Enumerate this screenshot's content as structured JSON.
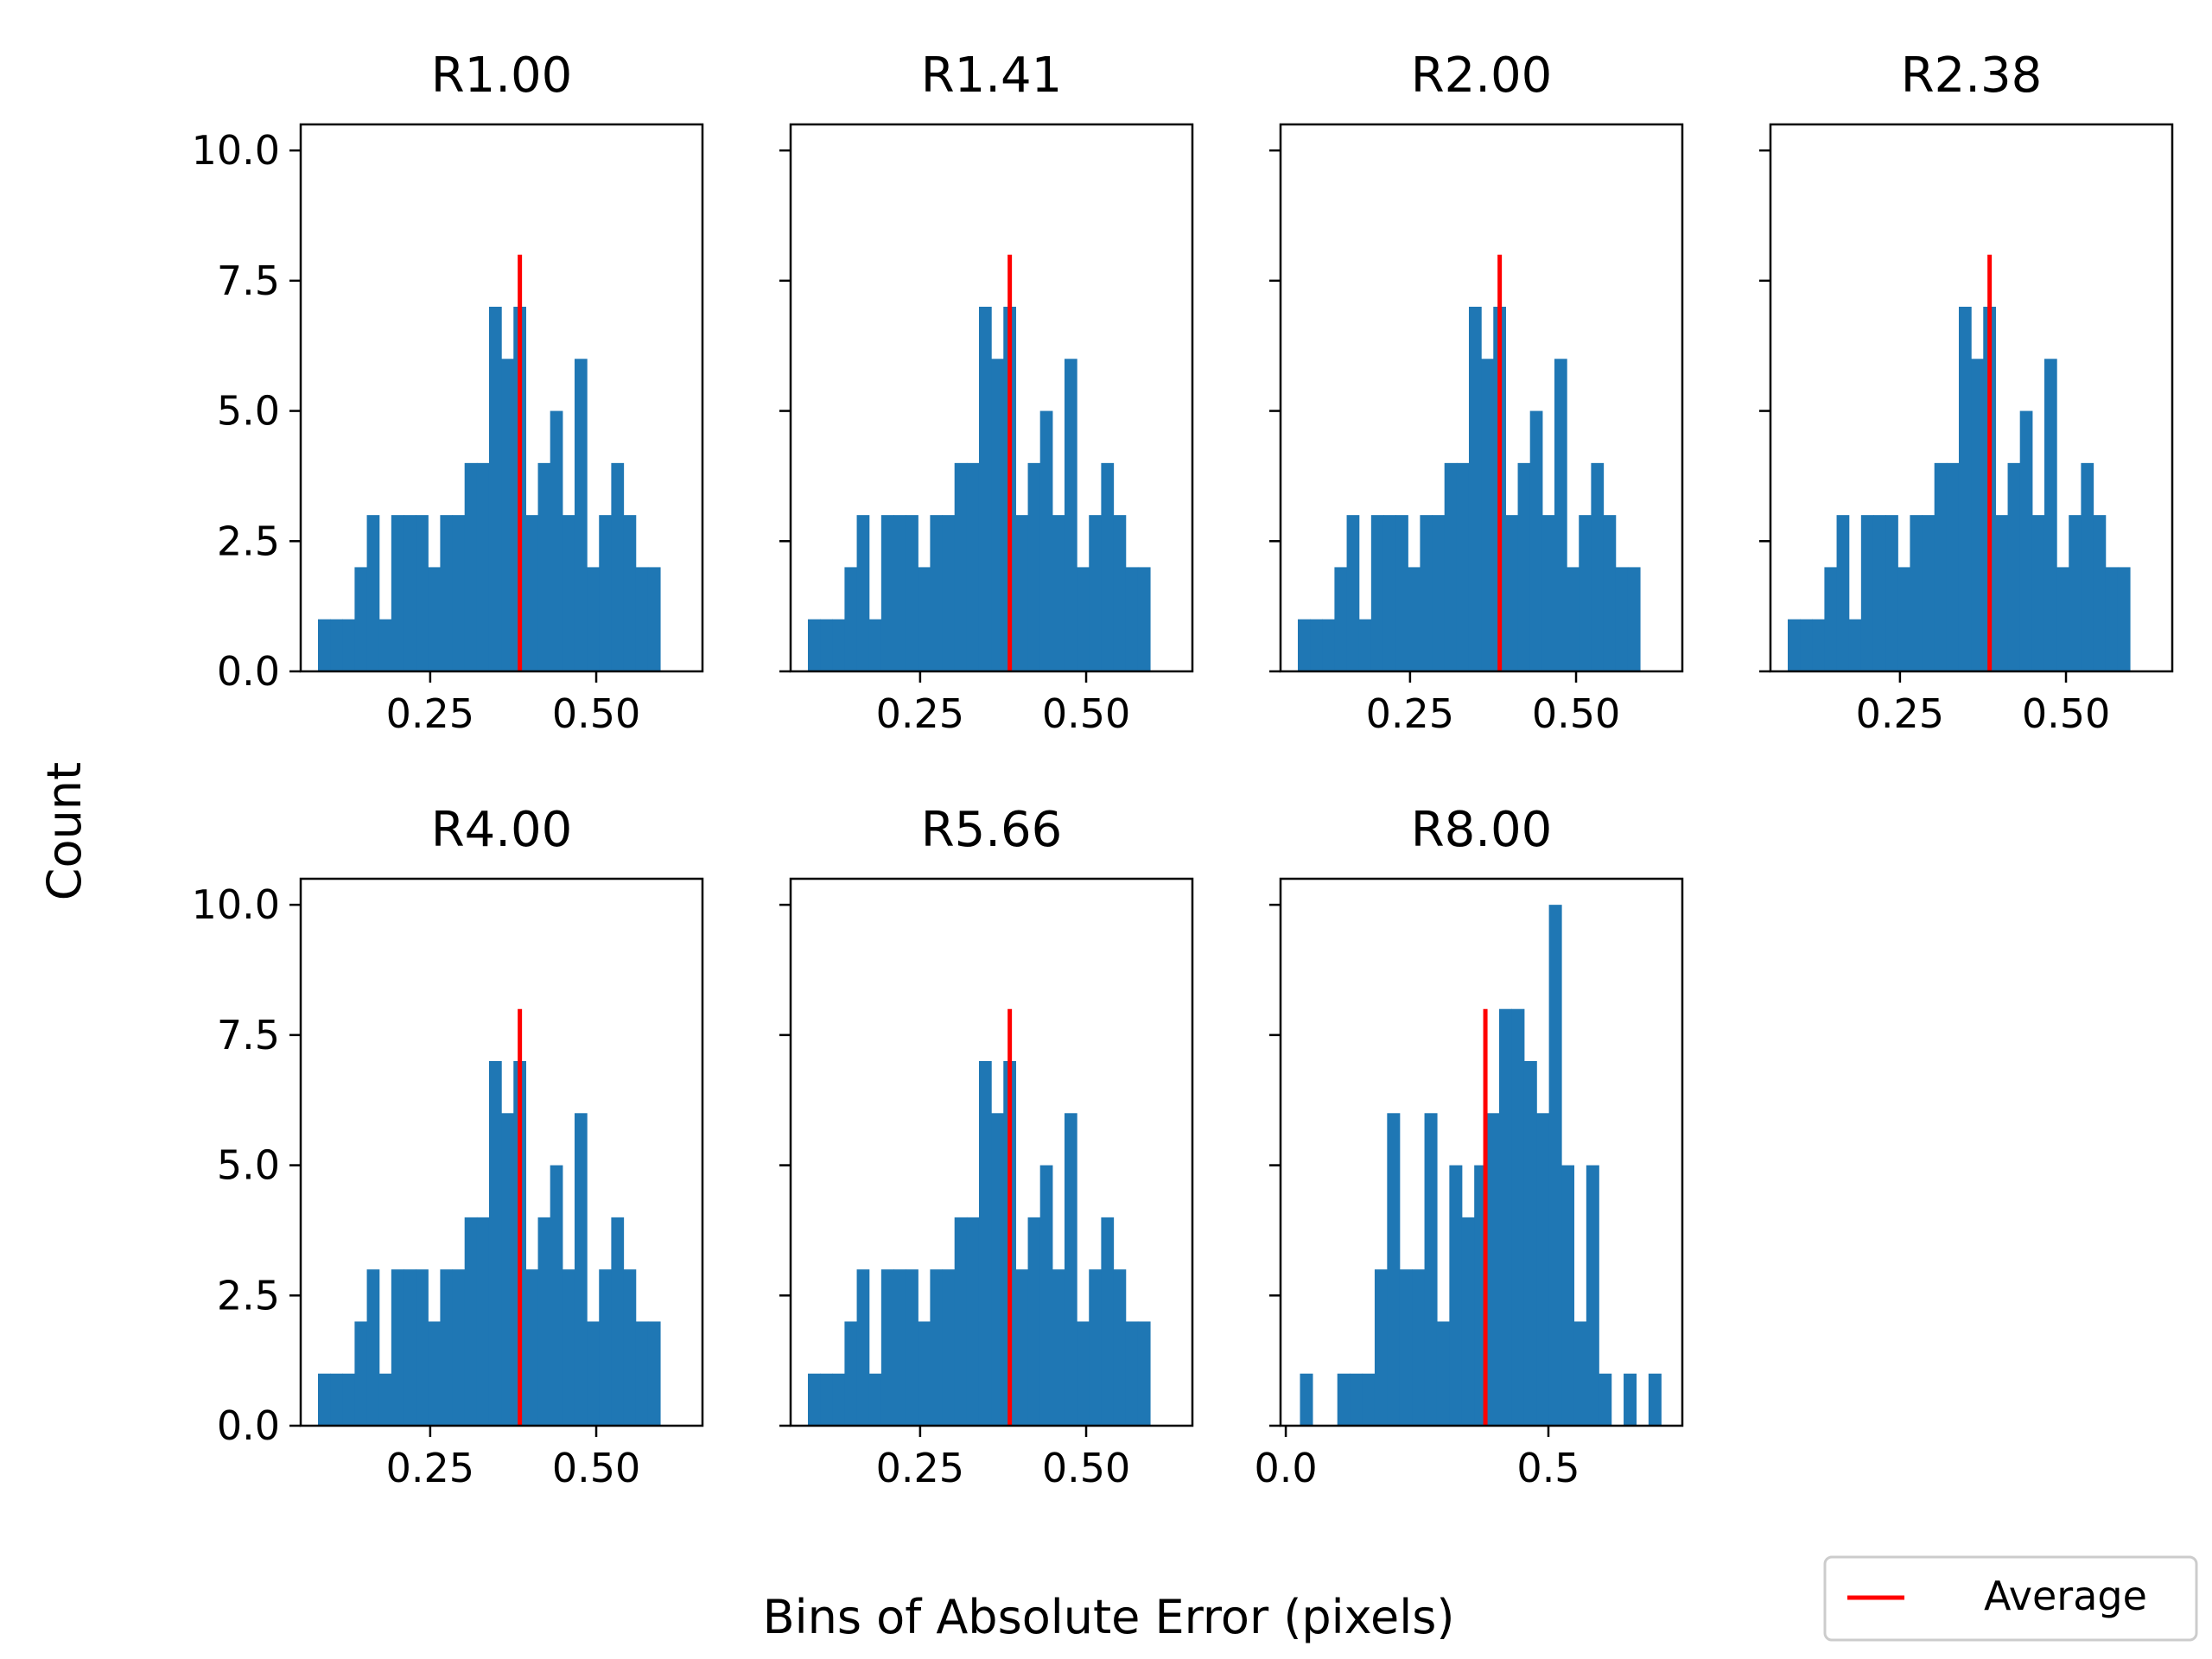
{
  "figure": {
    "xlabel": "Bins of Absolute Error (pixels)",
    "ylabel": "Count",
    "legend": {
      "label": "Average",
      "color": "#ff0000",
      "placement": "bottom-right"
    }
  },
  "colors": {
    "bar": "#1f77b4",
    "average": "#ff0000"
  },
  "chart_data": [
    {
      "type": "bar",
      "title": "R1.00",
      "xlim": [
        0.055,
        0.66
      ],
      "ylim": [
        0,
        10.5
      ],
      "xticks": [
        0.25,
        0.5
      ],
      "xtick_labels": [
        "0.25",
        "0.50"
      ],
      "yticks": [
        0,
        2.5,
        5,
        7.5,
        10
      ],
      "ytick_labels": [
        "0.0",
        "2.5",
        "5.0",
        "7.5",
        "10.0"
      ],
      "bin_start": 0.081,
      "bin_width": 0.0184,
      "counts": [
        1,
        1,
        1,
        2,
        3,
        1,
        3,
        3,
        3,
        2,
        3,
        3,
        4,
        4,
        7,
        6,
        7,
        3,
        4,
        5,
        3,
        6,
        2,
        3,
        4,
        3,
        2,
        2
      ],
      "average": 0.385,
      "average_top": 8
    },
    {
      "type": "bar",
      "title": "R1.41",
      "xlim": [
        0.055,
        0.66
      ],
      "ylim": [
        0,
        10.5
      ],
      "xticks": [
        0.25,
        0.5
      ],
      "xtick_labels": [
        "0.25",
        "0.50"
      ],
      "yticks": [
        0,
        2.5,
        5,
        7.5,
        10
      ],
      "ytick_labels": [
        "0.0",
        "2.5",
        "5.0",
        "7.5",
        "10.0"
      ],
      "bin_start": 0.081,
      "bin_width": 0.0184,
      "counts": [
        1,
        1,
        1,
        2,
        3,
        1,
        3,
        3,
        3,
        2,
        3,
        3,
        4,
        4,
        7,
        6,
        7,
        3,
        4,
        5,
        3,
        6,
        2,
        3,
        4,
        3,
        2,
        2
      ],
      "average": 0.385,
      "average_top": 8
    },
    {
      "type": "bar",
      "title": "R2.00",
      "xlim": [
        0.055,
        0.66
      ],
      "ylim": [
        0,
        10.5
      ],
      "xticks": [
        0.25,
        0.5
      ],
      "xtick_labels": [
        "0.25",
        "0.50"
      ],
      "yticks": [
        0,
        2.5,
        5,
        7.5,
        10
      ],
      "ytick_labels": [
        "0.0",
        "2.5",
        "5.0",
        "7.5",
        "10.0"
      ],
      "bin_start": 0.081,
      "bin_width": 0.0184,
      "counts": [
        1,
        1,
        1,
        2,
        3,
        1,
        3,
        3,
        3,
        2,
        3,
        3,
        4,
        4,
        7,
        6,
        7,
        3,
        4,
        5,
        3,
        6,
        2,
        3,
        4,
        3,
        2,
        2
      ],
      "average": 0.385,
      "average_top": 8
    },
    {
      "type": "bar",
      "title": "R2.38",
      "xlim": [
        0.055,
        0.66
      ],
      "ylim": [
        0,
        10.5
      ],
      "xticks": [
        0.25,
        0.5
      ],
      "xtick_labels": [
        "0.25",
        "0.50"
      ],
      "yticks": [
        0,
        2.5,
        5,
        7.5,
        10
      ],
      "ytick_labels": [
        "0.0",
        "2.5",
        "5.0",
        "7.5",
        "10.0"
      ],
      "bin_start": 0.081,
      "bin_width": 0.0184,
      "counts": [
        1,
        1,
        1,
        2,
        3,
        1,
        3,
        3,
        3,
        2,
        3,
        3,
        4,
        4,
        7,
        6,
        7,
        3,
        4,
        5,
        3,
        6,
        2,
        3,
        4,
        3,
        2,
        2
      ],
      "average": 0.385,
      "average_top": 8
    },
    {
      "type": "bar",
      "title": "R4.00",
      "xlim": [
        0.055,
        0.66
      ],
      "ylim": [
        0,
        10.5
      ],
      "xticks": [
        0.25,
        0.5
      ],
      "xtick_labels": [
        "0.25",
        "0.50"
      ],
      "yticks": [
        0,
        2.5,
        5,
        7.5,
        10
      ],
      "ytick_labels": [
        "0.0",
        "2.5",
        "5.0",
        "7.5",
        "10.0"
      ],
      "bin_start": 0.081,
      "bin_width": 0.0184,
      "counts": [
        1,
        1,
        1,
        2,
        3,
        1,
        3,
        3,
        3,
        2,
        3,
        3,
        4,
        4,
        7,
        6,
        7,
        3,
        4,
        5,
        3,
        6,
        2,
        3,
        4,
        3,
        2,
        2
      ],
      "average": 0.385,
      "average_top": 8
    },
    {
      "type": "bar",
      "title": "R5.66",
      "xlim": [
        0.055,
        0.66
      ],
      "ylim": [
        0,
        10.5
      ],
      "xticks": [
        0.25,
        0.5
      ],
      "xtick_labels": [
        "0.25",
        "0.50"
      ],
      "yticks": [
        0,
        2.5,
        5,
        7.5,
        10
      ],
      "ytick_labels": [
        "0.0",
        "2.5",
        "5.0",
        "7.5",
        "10.0"
      ],
      "bin_start": 0.081,
      "bin_width": 0.0184,
      "counts": [
        1,
        1,
        1,
        2,
        3,
        1,
        3,
        3,
        3,
        2,
        3,
        3,
        4,
        4,
        7,
        6,
        7,
        3,
        4,
        5,
        3,
        6,
        2,
        3,
        4,
        3,
        2,
        2
      ],
      "average": 0.385,
      "average_top": 8
    },
    {
      "type": "bar",
      "title": "R8.00",
      "xlim": [
        -0.01,
        0.755
      ],
      "ylim": [
        0,
        10.5
      ],
      "xticks": [
        0.0,
        0.5
      ],
      "xtick_labels": [
        "0.0",
        "0.5"
      ],
      "yticks": [
        0,
        2.5,
        5,
        7.5,
        10
      ],
      "ytick_labels": [
        "0.0",
        "2.5",
        "5.0",
        "7.5",
        "10.0"
      ],
      "bin_start": 0.027,
      "bin_width": 0.0237,
      "counts": [
        1,
        0,
        0,
        1,
        1,
        1,
        3,
        6,
        3,
        3,
        6,
        2,
        5,
        4,
        5,
        6,
        8,
        8,
        7,
        6,
        10,
        5,
        2,
        5,
        1,
        0,
        1,
        0,
        1
      ],
      "average": 0.38,
      "average_top": 8
    }
  ]
}
